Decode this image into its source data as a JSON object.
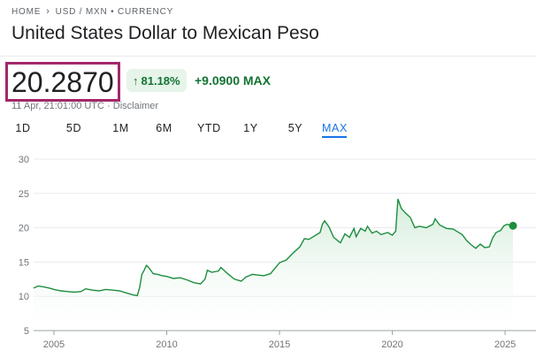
{
  "breadcrumb": {
    "home": "HOME",
    "pair": "USD / MXN • CURRENCY"
  },
  "title": "United States Dollar to Mexican Peso",
  "price": "20.2870",
  "change": {
    "percent": "81.18%",
    "absolute": "+9.0900 MAX"
  },
  "timestamp": "11 Apr, 21:01:00 UTC · Disclaimer",
  "tabs": [
    {
      "label": "1D"
    },
    {
      "label": "5D"
    },
    {
      "label": "1M"
    },
    {
      "label": "6M"
    },
    {
      "label": "YTD"
    },
    {
      "label": "1Y"
    },
    {
      "label": "5Y"
    },
    {
      "label": "MAX"
    }
  ],
  "active_tab": "MAX",
  "colors": {
    "line": "#1e8e3e",
    "fill": "#e6f4ea",
    "accent": "#1a73e8",
    "highlight_box": "#a3276b"
  },
  "chart_data": {
    "type": "area",
    "title": "",
    "xlabel": "",
    "ylabel": "",
    "ylim": [
      5,
      30
    ],
    "yticks": [
      5,
      10,
      15,
      20,
      25,
      30
    ],
    "xlim": [
      2004.1,
      2025.35
    ],
    "xticks": [
      2005,
      2010,
      2015,
      2020,
      2025
    ],
    "grid": true,
    "series": [
      {
        "x": [
          2004.1,
          2004.3,
          2004.5,
          2004.8,
          2005.0,
          2005.3,
          2005.6,
          2005.9,
          2006.2,
          2006.4,
          2006.7,
          2007.0,
          2007.3,
          2007.6,
          2007.9,
          2008.2,
          2008.5,
          2008.7,
          2008.8,
          2008.9,
          2009.0,
          2009.1,
          2009.2,
          2009.4,
          2009.6,
          2009.8,
          2010.0,
          2010.3,
          2010.6,
          2010.9,
          2011.2,
          2011.5,
          2011.7,
          2011.8,
          2012.0,
          2012.3,
          2012.4,
          2012.7,
          2013.0,
          2013.3,
          2013.5,
          2013.8,
          2014.0,
          2014.3,
          2014.6,
          2014.9,
          2015.0,
          2015.3,
          2015.6,
          2015.9,
          2016.1,
          2016.3,
          2016.5,
          2016.8,
          2016.9,
          2017.0,
          2017.2,
          2017.4,
          2017.7,
          2017.9,
          2018.1,
          2018.3,
          2018.4,
          2018.6,
          2018.8,
          2018.9,
          2019.1,
          2019.3,
          2019.5,
          2019.8,
          2020.0,
          2020.15,
          2020.25,
          2020.4,
          2020.6,
          2020.8,
          2021.0,
          2021.2,
          2021.5,
          2021.8,
          2021.9,
          2022.1,
          2022.4,
          2022.7,
          2022.9,
          2023.1,
          2023.3,
          2023.5,
          2023.7,
          2023.9,
          2024.1,
          2024.3,
          2024.45,
          2024.6,
          2024.8,
          2024.95,
          2025.1,
          2025.25,
          2025.35
        ],
        "values": [
          11.2,
          11.5,
          11.4,
          11.2,
          11.0,
          10.8,
          10.7,
          10.6,
          10.7,
          11.1,
          10.9,
          10.8,
          11.0,
          10.9,
          10.8,
          10.5,
          10.2,
          10.1,
          11.3,
          13.2,
          13.8,
          14.5,
          14.2,
          13.3,
          13.2,
          13.0,
          12.9,
          12.6,
          12.7,
          12.4,
          12.0,
          11.8,
          12.5,
          13.8,
          13.5,
          13.7,
          14.2,
          13.3,
          12.5,
          12.2,
          12.8,
          13.2,
          13.1,
          13.0,
          13.3,
          14.5,
          14.9,
          15.3,
          16.3,
          17.2,
          18.4,
          18.3,
          18.7,
          19.3,
          20.5,
          21.0,
          20.1,
          18.6,
          17.8,
          19.1,
          18.6,
          19.9,
          18.7,
          19.9,
          19.5,
          20.2,
          19.2,
          19.5,
          19.0,
          19.3,
          18.9,
          19.5,
          24.2,
          22.8,
          22.1,
          21.5,
          20.0,
          20.2,
          20.0,
          20.5,
          21.3,
          20.4,
          19.9,
          19.8,
          19.4,
          19.0,
          18.1,
          17.5,
          17.0,
          17.6,
          17.1,
          17.2,
          18.5,
          19.3,
          19.6,
          20.3,
          20.5,
          20.3,
          20.287
        ]
      }
    ]
  }
}
